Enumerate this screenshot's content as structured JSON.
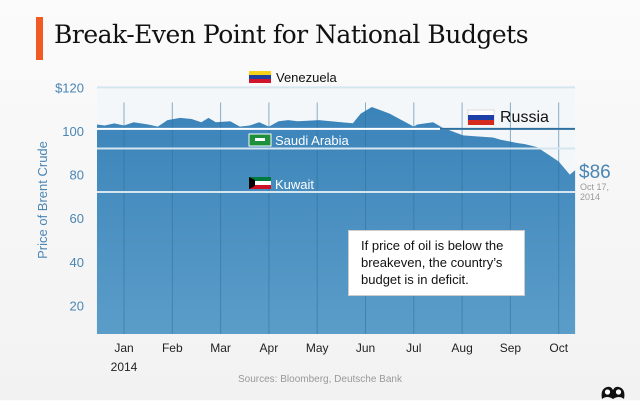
{
  "title": "Break-Even Point for National Budgets",
  "source": "Sources: Bloomberg, Deutsche Bank",
  "note": "If price of oil is below the breakeven, the country’s budget is in deficit.",
  "colors": {
    "accent": "#f15a22",
    "area": "#3c87bd",
    "axis_text": "#4a86b4",
    "line": "#cfe2ef"
  },
  "chart_data": {
    "type": "area",
    "title": "Break-Even Point for National Budgets",
    "ylabel": "Price of Brent Crude",
    "xlabel": "",
    "ylim": [
      7,
      120
    ],
    "yticks": [
      {
        "value": 120,
        "label": "$120"
      },
      {
        "value": 100,
        "label": "100"
      },
      {
        "value": 80,
        "label": "80"
      },
      {
        "value": 60,
        "label": "60"
      },
      {
        "value": 40,
        "label": "40"
      },
      {
        "value": 20,
        "label": "20"
      }
    ],
    "xticks": [
      {
        "month": 1,
        "label": "Jan",
        "sublabel": "2014"
      },
      {
        "month": 2,
        "label": "Feb"
      },
      {
        "month": 3,
        "label": "Mar"
      },
      {
        "month": 4,
        "label": "Apr"
      },
      {
        "month": 5,
        "label": "May"
      },
      {
        "month": 6,
        "label": "Jun"
      },
      {
        "month": 7,
        "label": "Jul"
      },
      {
        "month": 8,
        "label": "Aug"
      },
      {
        "month": 9,
        "label": "Sep"
      },
      {
        "month": 10,
        "label": "Oct"
      }
    ],
    "xlim": [
      0.44,
      10.34
    ],
    "series": [
      {
        "name": "Brent crude price",
        "points": [
          [
            0.44,
            103
          ],
          [
            0.6,
            102.5
          ],
          [
            0.8,
            103.5
          ],
          [
            1.0,
            102.5
          ],
          [
            1.2,
            104
          ],
          [
            1.5,
            103
          ],
          [
            1.7,
            102
          ],
          [
            1.9,
            105
          ],
          [
            2.16,
            106
          ],
          [
            2.4,
            105.5
          ],
          [
            2.6,
            104
          ],
          [
            2.75,
            106
          ],
          [
            2.9,
            104
          ],
          [
            3.2,
            104.5
          ],
          [
            3.4,
            102
          ],
          [
            3.6,
            102.5
          ],
          [
            3.8,
            104
          ],
          [
            4.0,
            102
          ],
          [
            4.2,
            104.5
          ],
          [
            4.4,
            105
          ],
          [
            4.6,
            104.5
          ],
          [
            5.04,
            105
          ],
          [
            5.5,
            104
          ],
          [
            5.74,
            103.6
          ],
          [
            5.9,
            108
          ],
          [
            6.13,
            111
          ],
          [
            6.5,
            108
          ],
          [
            7.0,
            102
          ],
          [
            7.07,
            103
          ],
          [
            7.4,
            104
          ],
          [
            7.6,
            101.5
          ],
          [
            8.02,
            98
          ],
          [
            8.3,
            97.5
          ],
          [
            8.64,
            97
          ],
          [
            8.8,
            96
          ],
          [
            9.14,
            94.5
          ],
          [
            9.3,
            94
          ],
          [
            9.55,
            92.6
          ],
          [
            9.8,
            89
          ],
          [
            10.0,
            86
          ],
          [
            10.23,
            80
          ],
          [
            10.34,
            82
          ]
        ]
      }
    ],
    "breakevens": [
      {
        "country": "Venezuela",
        "value": 120
      },
      {
        "country": "Russia",
        "value": 101
      },
      {
        "country": "Saudi Arabia",
        "value": 92
      },
      {
        "country": "Kuwait",
        "value": 72
      }
    ],
    "annotation": {
      "value": "$86",
      "date": "Oct 17,",
      "year": "2014"
    }
  }
}
